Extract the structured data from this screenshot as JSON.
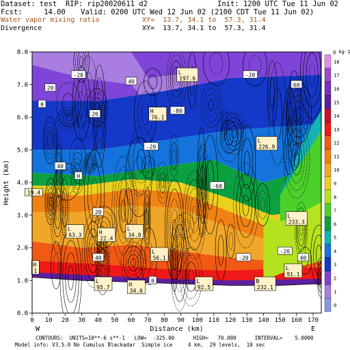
{
  "header": {
    "dataset": "Dataset: test  RIP: rip20020611 d2",
    "init": "Init: 1200 UTC Tue 11 Jun 02",
    "fcst": "Fcst:     14.00",
    "valid": "Valid: 0200 UTC Wed 12 Jun 02 (2100 CDT Tue 11 Jun 02)",
    "field1_name": "Water vapor mixing ratio",
    "field1_xy": "XY=  13.7, 34.1 to  57.3, 31.4",
    "field2_name": "Divergence",
    "field2_xy": "XY=  13.7, 34.1 to  57.3, 31.4"
  },
  "footer": {
    "contours": "CONTOURS:  UNITS=10**-6 s**-1   LOW=  -325.00      HIGH=   70.000      INTERVAL=    5.0000",
    "model_info": "Model info: V3.5.0 No Cumulus Blackadar  Simple ice     4 km,  29 levels,  10 sec"
  },
  "colorbar": {
    "unit_label": "g kg-1",
    "levels": [
      "18",
      "17",
      "16",
      "15",
      "14",
      "13",
      "12",
      "11",
      "10",
      "9",
      "8",
      "7",
      "6",
      "5",
      "4",
      "3",
      "2",
      "1",
      "0"
    ],
    "colors": [
      "#e38ee8",
      "#a048c8",
      "#7a2ec2",
      "#5e1fa0",
      "#c8102a",
      "#f01818",
      "#f05a14",
      "#f08214",
      "#f0a628",
      "#ecd01e",
      "#b4e21e",
      "#4cd02a",
      "#0ca040",
      "#14b4b4",
      "#1473dc",
      "#1438c8",
      "#7f44d8",
      "#a87ee0",
      "#8a96ec"
    ]
  },
  "chart_data": {
    "type": "heatmap",
    "title": "Water vapor mixing ratio",
    "overlay": "Divergence",
    "xlabel": "Distance (km)",
    "ylabel": "Height (km)",
    "xlim": [
      0,
      175
    ],
    "ylim": [
      0,
      8
    ],
    "x_ticks": [
      "0",
      "10",
      "20",
      "30",
      "40",
      "50",
      "60",
      "70",
      "80",
      "90",
      "100",
      "110",
      "120",
      "130",
      "140",
      "150",
      "160",
      "170"
    ],
    "y_ticks": [
      "0.0",
      "1.0",
      "2.0",
      "3.0",
      "4.0",
      "5.0",
      "6.0",
      "7.0",
      "8.0"
    ],
    "x_end_labels": {
      "left": "W",
      "right": "E"
    },
    "extrema": [
      {
        "label": "L",
        "value": "197.6",
        "x": 94,
        "y": 7.3
      },
      {
        "label": "H",
        "value": "76.1",
        "x": 76,
        "y": 6.1
      },
      {
        "label": "L",
        "value": "226.9",
        "x": 142,
        "y": 5.2
      },
      {
        "label": "L",
        "value": "233.3",
        "x": 160,
        "y": 2.9
      },
      {
        "label": "L",
        "value": "34.8",
        "x": 62,
        "y": 2.5
      },
      {
        "label": "L",
        "value": "56.1",
        "x": 77,
        "y": 1.8
      },
      {
        "label": "L",
        "value": "63.3",
        "x": 26,
        "y": 2.5
      },
      {
        "label": "H",
        "value": "22.4",
        "x": 45,
        "y": 2.4
      },
      {
        "label": "H",
        "value": "1",
        "x": 2,
        "y": 1.4
      },
      {
        "label": "L",
        "value": "95.7",
        "x": 43,
        "y": 0.9
      },
      {
        "label": "H",
        "value": "34.6",
        "x": 63,
        "y": 0.8
      },
      {
        "label": "L",
        "value": "92.5",
        "x": 104,
        "y": 0.9
      },
      {
        "label": "B",
        "value": "232.1",
        "x": 141,
        "y": 0.9
      },
      {
        "label": "L",
        "value": "91.1",
        "x": 158,
        "y": 1.3
      },
      {
        "label": "",
        "value": "19.4",
        "x": 1,
        "y": 3.7
      }
    ],
    "contour_labels": [
      {
        "value": "-20",
        "x": 28,
        "y": 7.3
      },
      {
        "value": "20",
        "x": 11,
        "y": 6.9
      },
      {
        "value": "0",
        "x": 6,
        "y": 6.4
      },
      {
        "value": "40",
        "x": 60,
        "y": 7.1
      },
      {
        "value": "20",
        "x": 38,
        "y": 6.1
      },
      {
        "value": "-80",
        "x": 88,
        "y": 6.2
      },
      {
        "value": "-20",
        "x": 132,
        "y": 7.3
      },
      {
        "value": "60",
        "x": 160,
        "y": 7.0
      },
      {
        "value": "40",
        "x": 17,
        "y": 4.5
      },
      {
        "value": "H",
        "x": 28,
        "y": 4.2
      },
      {
        "value": "-20",
        "x": 72,
        "y": 5.1
      },
      {
        "value": "20",
        "x": 40,
        "y": 3.1
      },
      {
        "value": "-60",
        "x": 112,
        "y": 3.9
      },
      {
        "value": "-20",
        "x": 128,
        "y": 1.7
      },
      {
        "value": "40",
        "x": 40,
        "y": 1.7
      },
      {
        "value": "0",
        "x": 73,
        "y": 1.0
      },
      {
        "value": "-20",
        "x": 153,
        "y": 1.9
      },
      {
        "value": "40",
        "x": 164,
        "y": 1.7
      }
    ]
  }
}
